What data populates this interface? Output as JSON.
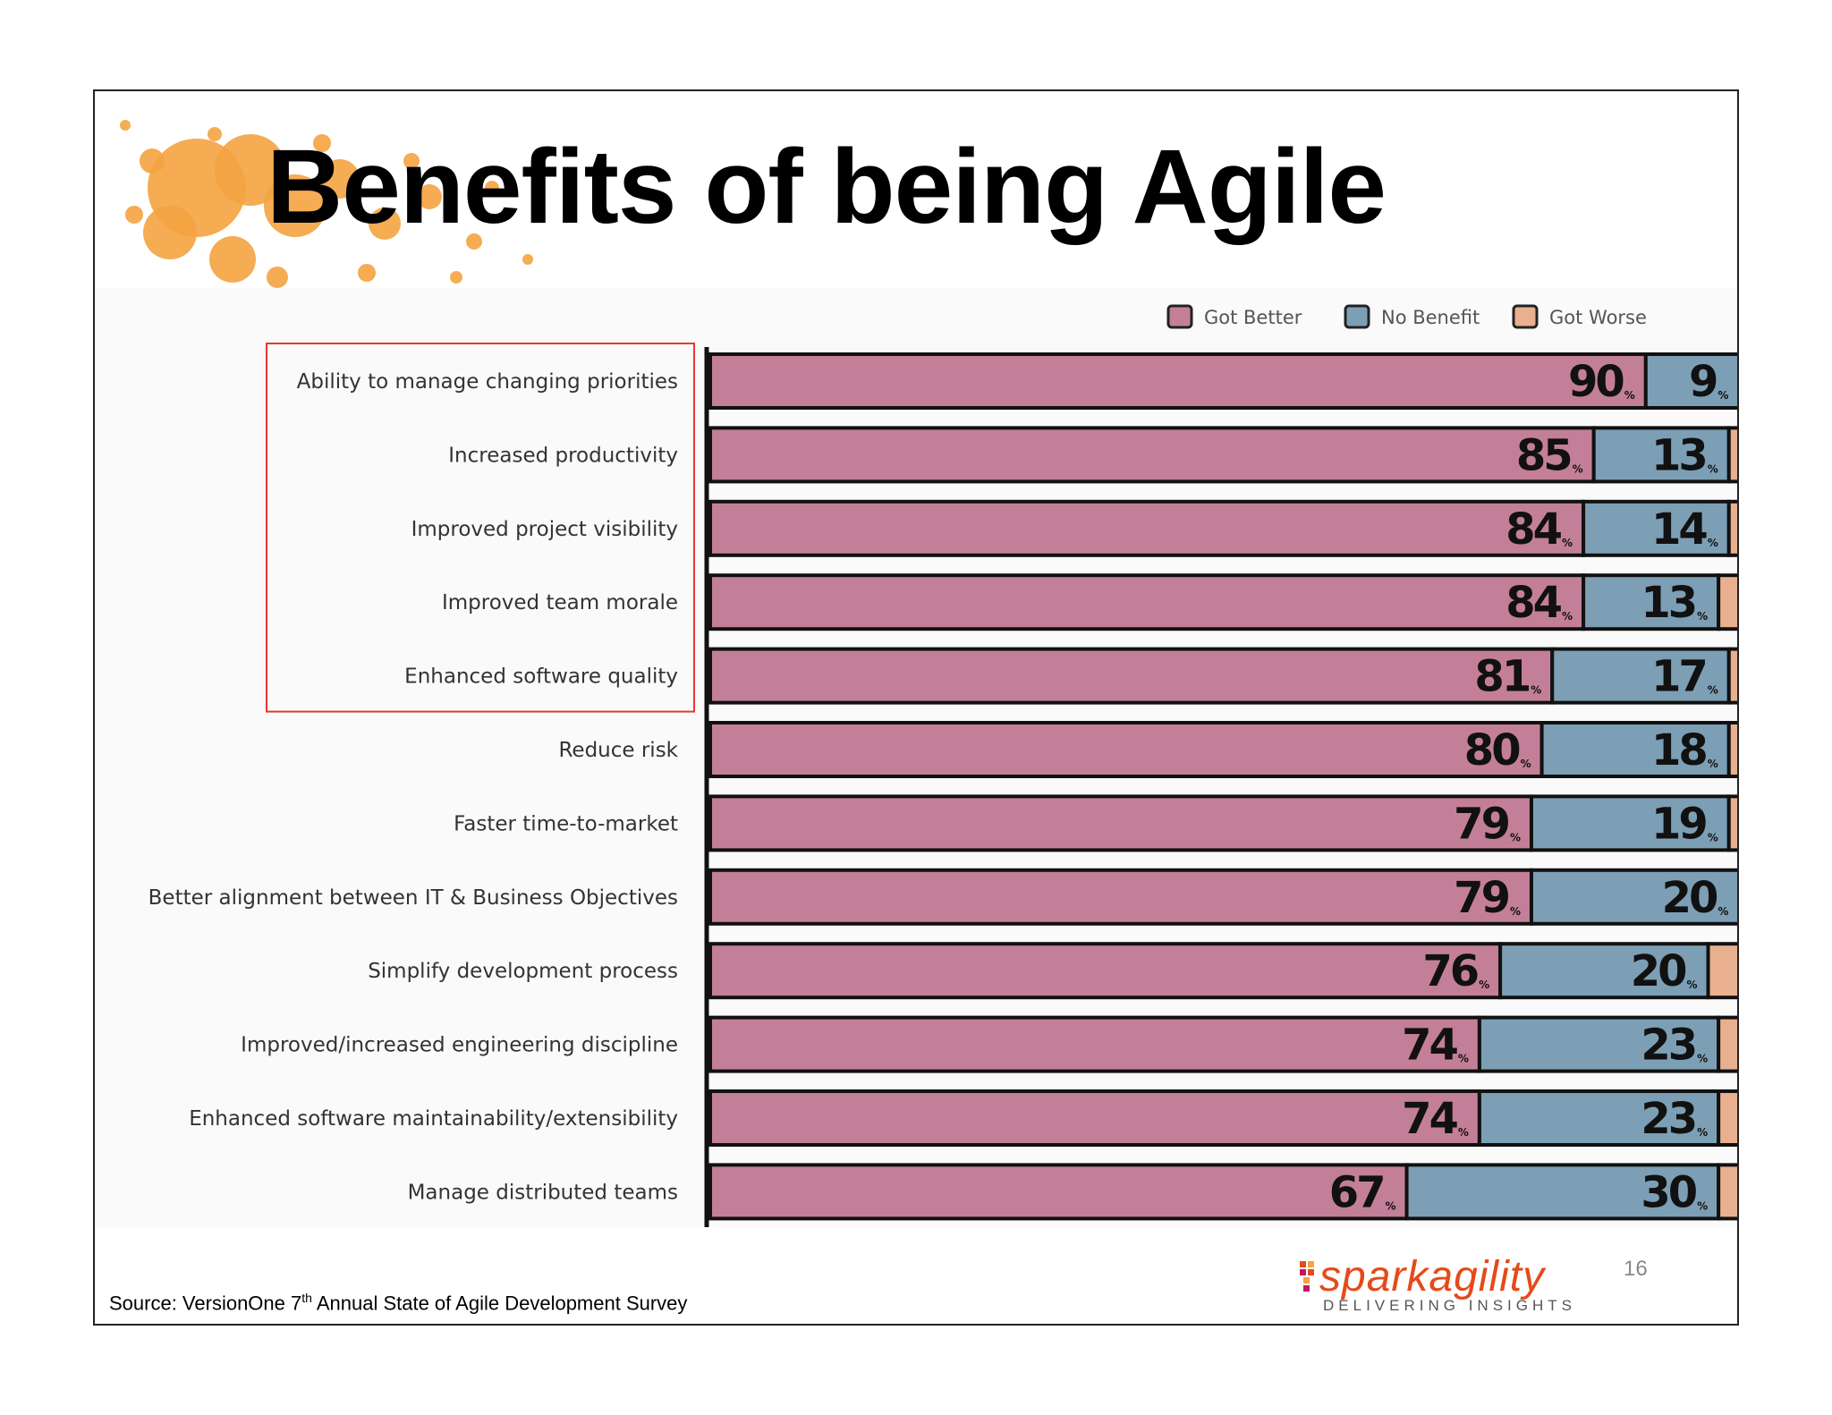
{
  "slide": {
    "title": "Benefits of being Agile",
    "source_prefix": "Source: VersionOne 7",
    "source_sup": "th",
    "source_suffix": " Annual State of Agile Development Survey",
    "page_number": "16",
    "logo": {
      "word1": "spark",
      "word2": "agility",
      "tagline": "DELIVERING INSIGHTS"
    }
  },
  "colors": {
    "got_better": "#c47f98",
    "no_benefit": "#7c9fb5",
    "got_worse": "#e9b08f",
    "highlight_box": "#e53935",
    "splat": "#f4a340"
  },
  "chart_data": {
    "type": "bar",
    "orientation": "horizontal",
    "stacked": true,
    "unit": "%",
    "legend": {
      "placement": "top-right"
    },
    "categories": [
      "Ability to manage changing priorities",
      "Increased productivity",
      "Improved project visibility",
      "Improved team morale",
      "Enhanced software quality",
      "Reduce risk",
      "Faster time-to-market",
      "Better alignment between IT & Business Objectives",
      "Simplify development process",
      "Improved/increased engineering discipline",
      "Enhanced software maintainability/extensibility",
      "Manage distributed teams"
    ],
    "highlighted_categories": [
      0,
      1,
      2,
      3,
      4
    ],
    "series": [
      {
        "name": "Got Better",
        "values": [
          90,
          85,
          84,
          84,
          81,
          80,
          79,
          79,
          76,
          74,
          74,
          67
        ]
      },
      {
        "name": "No Benefit",
        "values": [
          9,
          13,
          14,
          13,
          17,
          18,
          19,
          20,
          20,
          23,
          23,
          30
        ]
      },
      {
        "name": "Got Worse",
        "values": [
          1,
          2,
          2,
          3,
          2,
          2,
          2,
          1,
          4,
          3,
          3,
          3
        ]
      }
    ],
    "percent_symbol": "%",
    "xlim": [
      0,
      100
    ]
  }
}
